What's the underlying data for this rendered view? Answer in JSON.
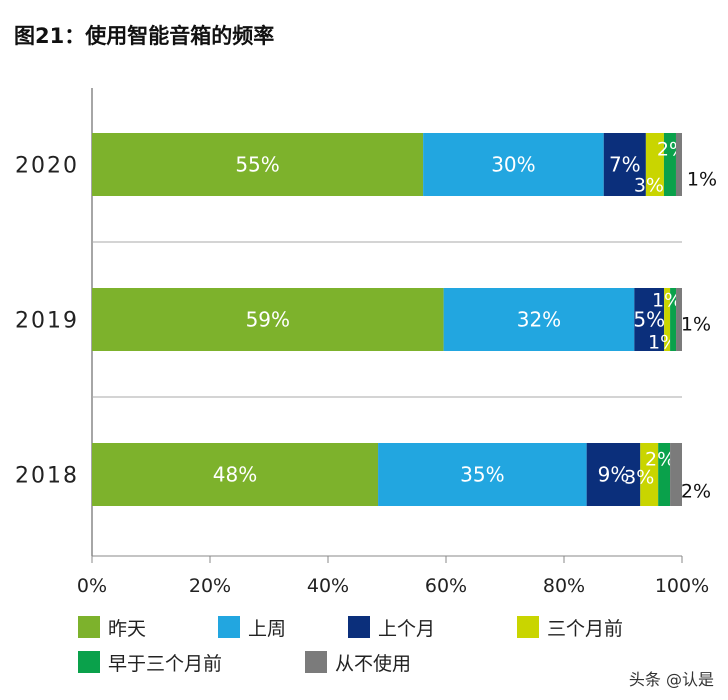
{
  "chart_data": {
    "type": "bar",
    "orientation": "horizontal-stacked-100",
    "title": "图21：使用智能音箱的频率",
    "categories": [
      "2020",
      "2019",
      "2018"
    ],
    "series": [
      {
        "name": "昨天",
        "color": "#7db22c",
        "values": [
          55,
          59,
          48
        ]
      },
      {
        "name": "上周",
        "color": "#22a6e0",
        "values": [
          30,
          32,
          35
        ]
      },
      {
        "name": "上个月",
        "color": "#0b2f7b",
        "values": [
          7,
          5,
          9
        ]
      },
      {
        "name": "三个月前",
        "color": "#c9d500",
        "values": [
          3,
          1,
          3
        ]
      },
      {
        "name": "早于三个月前",
        "color": "#0aa14b",
        "values": [
          2,
          1,
          2
        ]
      },
      {
        "name": "从不使用",
        "color": "#7b7b7b",
        "values": [
          1,
          1,
          2
        ]
      }
    ],
    "xticks": [
      "0%",
      "20%",
      "40%",
      "60%",
      "80%",
      "100%"
    ],
    "xlim": [
      0,
      100
    ],
    "grid": "horizontal separators between bars",
    "legend": "bottom"
  },
  "watermark": "头条 @认是"
}
